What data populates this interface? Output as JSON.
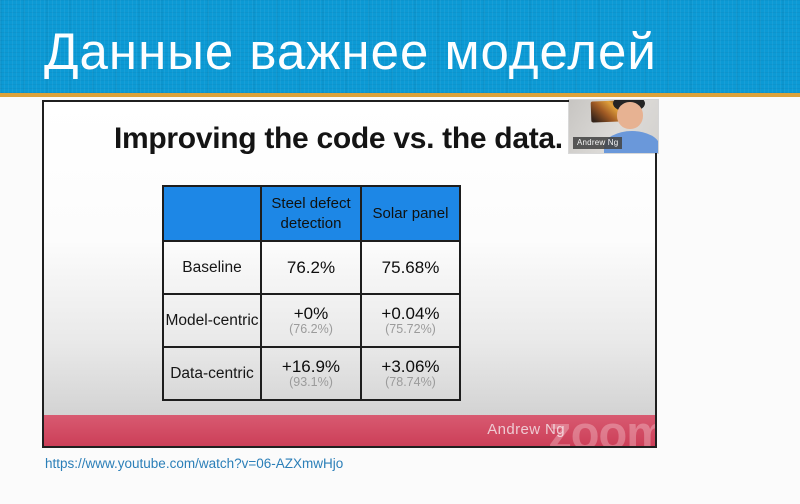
{
  "header": {
    "title": "Данные важнее моделей"
  },
  "video": {
    "title": "Improving the code vs. the data.",
    "webcam": {
      "name_label": "Andrew Ng"
    },
    "footer": {
      "speaker_name": "Andrew Ng",
      "watermark": "zoom"
    }
  },
  "table": {
    "headers": [
      "",
      "Steel defect detection",
      "Solar panel"
    ],
    "rows": [
      {
        "label": "Baseline",
        "steel": {
          "main": "76.2%",
          "sub": ""
        },
        "solar": {
          "main": "75.68%",
          "sub": ""
        }
      },
      {
        "label": "Model-centric",
        "steel": {
          "main": "+0%",
          "sub": "(76.2%)"
        },
        "solar": {
          "main": "+0.04%",
          "sub": "(75.72%)"
        }
      },
      {
        "label": "Data-centric",
        "steel": {
          "main": "+16.9%",
          "sub": "(93.1%)"
        },
        "solar": {
          "main": "+3.06%",
          "sub": "(78.74%)"
        }
      }
    ]
  },
  "footer_link": {
    "url": "https://www.youtube.com/watch?v=06-AZXmwHjo"
  },
  "colors": {
    "banner_blue": "#0c9ad5",
    "accent_orange": "#dda23a",
    "table_header_blue": "#1d87e6",
    "footer_red": "#cc3f58",
    "link_blue": "#2b7fb8"
  }
}
